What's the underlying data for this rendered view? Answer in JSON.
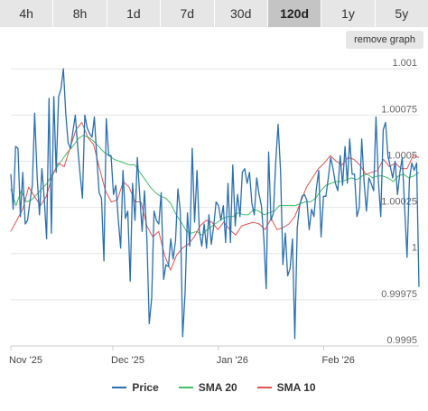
{
  "ranges": {
    "items": [
      "4h",
      "8h",
      "1d",
      "7d",
      "30d",
      "120d",
      "1y",
      "5y"
    ],
    "active": "120d"
  },
  "remove_graph_label": "remove graph",
  "colors": {
    "price": "#2a6fb0",
    "sma20": "#3fbf66",
    "sma10": "#e8514f",
    "grid": "#e6e6e6"
  },
  "chart_data": {
    "type": "line",
    "ylim": [
      0.9995,
      1.00105
    ],
    "yticks": [
      "1.001",
      "1.00075",
      "1.0005",
      "1.00025",
      "1",
      "0.99975",
      "0.9995"
    ],
    "xticks": [
      "Nov '25",
      "Dec '25",
      "Jan '26",
      "Feb '26"
    ],
    "x_range": [
      "2025-11-01",
      "2026-03-01"
    ],
    "series": [
      {
        "name": "Price",
        "values": [
          1.00043,
          1.00024,
          1.00058,
          1.00057,
          1.0002,
          1.00044,
          1.00016,
          1.00018,
          1.00028,
          1.00037,
          1.00076,
          1.00042,
          1.00021,
          1.00046,
          1.0003,
          1.00008,
          1.00084,
          1.00011,
          1.00085,
          1.00044,
          1.00085,
          1.00089,
          1.001,
          1.00076,
          1.0006,
          1.00057,
          1.00066,
          1.00075,
          1.00058,
          1.00043,
          1.0003,
          1.00075,
          1.00068,
          1.00065,
          1.00063,
          1.00074,
          1.00052,
          1.00033,
          1.0003,
          0.99996,
          1.00073,
          1.00053,
          1.00053,
          1.00032,
          1.00037,
          1.00019,
          1.00003,
          1.00045,
          1.00019,
          1.00023,
          0.99985,
          1.00038,
          1.00018,
          1.00052,
          1.00032,
          1.00012,
          1.00034,
          1.00008,
          0.99962,
          0.99976,
          1.00023,
          1.00018,
          1.00016,
          1.00033,
          0.99986,
          0.99994,
          0.99993,
          1.00008,
          0.99997,
          1.00007,
          1.00035,
          1.00023,
          0.99955,
          0.99979,
          1.00022,
          1.00004,
          1.00057,
          1.00017,
          1.00045,
          1.00012,
          1.00004,
          1.00016,
          1.00003,
          1.00021,
          1.00005,
          1.00015,
          1.00028,
          1.00026,
          1.00018,
          1.00026,
          1.00006,
          1.00038,
          1.00006,
          1.00048,
          1.00015,
          1.00032,
          1.0002,
          1.00044,
          1.00046,
          1.00038,
          1.00044,
          1.00027,
          1.00021,
          1.00041,
          1.00032,
          1.00026,
          1.00008,
          0.99981,
          1.00055,
          1.00018,
          1.00022,
          1.0005,
          1.0007,
          1.00045,
          0.99994,
          1.00011,
          0.99988,
          0.99992,
          1.00008,
          0.99954,
          1.00014,
          1.00026,
          1.00031,
          1.00032,
          1.00029,
          1.00013,
          1.00024,
          1.0002,
          1.00035,
          1.00045,
          1.00009,
          1.00031,
          1.00031,
          1.00041,
          1.00052,
          1.00046,
          1.00038,
          1.00034,
          1.00053,
          1.00037,
          1.00058,
          1.00038,
          1.00062,
          1.00043,
          1.00043,
          1.0002,
          1.00025,
          1.00062,
          1.00039,
          1.00023,
          1.00041,
          1.00038,
          1.00034,
          1.00074,
          1.00039,
          1.0002,
          1.00067,
          1.00071,
          1.00053,
          1.00047,
          1.00041,
          1.0005,
          1.00032,
          1.00044,
          1.00052,
          1.00025,
          0.99998,
          1.0004,
          1.00049,
          1.00045,
          1.00049,
          0.99982
        ]
      },
      {
        "name": "SMA 20",
        "values": [
          1.00035,
          1.00026,
          1.00034,
          1.00028,
          1.00029,
          1.00032,
          1.00035,
          1.00038,
          1.00043,
          1.00047,
          1.00051,
          1.00055,
          1.00058,
          1.00062,
          1.00064,
          1.00063,
          1.00061,
          1.00058,
          1.00055,
          1.00053,
          1.00051,
          1.0005,
          1.00049,
          1.00048,
          1.00048,
          1.00044,
          1.0004,
          1.00036,
          1.00033,
          1.00031,
          1.0003,
          1.00027,
          1.00021,
          1.00017,
          1.00012,
          1.00011,
          1.00012,
          1.0001,
          1.00013,
          1.00015,
          1.00017,
          1.00019,
          1.0002,
          1.0002,
          1.00022,
          1.00021,
          1.00021,
          1.00024,
          1.00023,
          1.00021,
          1.00022,
          1.00023,
          1.00026,
          1.00026,
          1.00026,
          1.00026,
          1.00027,
          1.00028,
          1.00028,
          1.0003,
          1.00034,
          1.00037,
          1.00038,
          1.00039,
          1.00039,
          1.0004,
          1.00041,
          1.0004,
          1.00042,
          1.00043,
          1.00041,
          1.00042,
          1.00042,
          1.00041,
          1.00039,
          1.00042,
          1.00043,
          1.00041,
          1.00042,
          1.00044
        ]
      },
      {
        "name": "SMA 10",
        "values": [
          1.00012,
          1.00018,
          1.00024,
          1.00036,
          1.00031,
          1.00026,
          1.00031,
          1.00042,
          1.00049,
          1.00047,
          1.00057,
          1.00067,
          1.00071,
          1.00063,
          1.00059,
          1.00046,
          1.00034,
          1.00028,
          1.00029,
          1.00039,
          1.00036,
          1.00028,
          1.00028,
          1.00015,
          1.00009,
          1.00012,
          0.99999,
          0.99991,
          0.99999,
          1.00003,
          1.00005,
          1.00009,
          1.00015,
          1.00018,
          1.00017,
          1.00013,
          1.00017,
          1.00013,
          1.0001,
          1.00015,
          1.00016,
          1.00017,
          1.00016,
          1.00013,
          1.00019,
          1.00013,
          1.00014,
          1.00016,
          1.0002,
          1.00028,
          1.00036,
          1.00041,
          1.00046,
          1.00049,
          1.00053,
          1.0005,
          1.00048,
          1.00052,
          1.00051,
          1.00048,
          1.00043,
          1.00044,
          1.00045,
          1.00051,
          1.00047,
          1.00049,
          1.00046,
          1.00046,
          1.00053,
          1.00052
        ]
      }
    ]
  }
}
